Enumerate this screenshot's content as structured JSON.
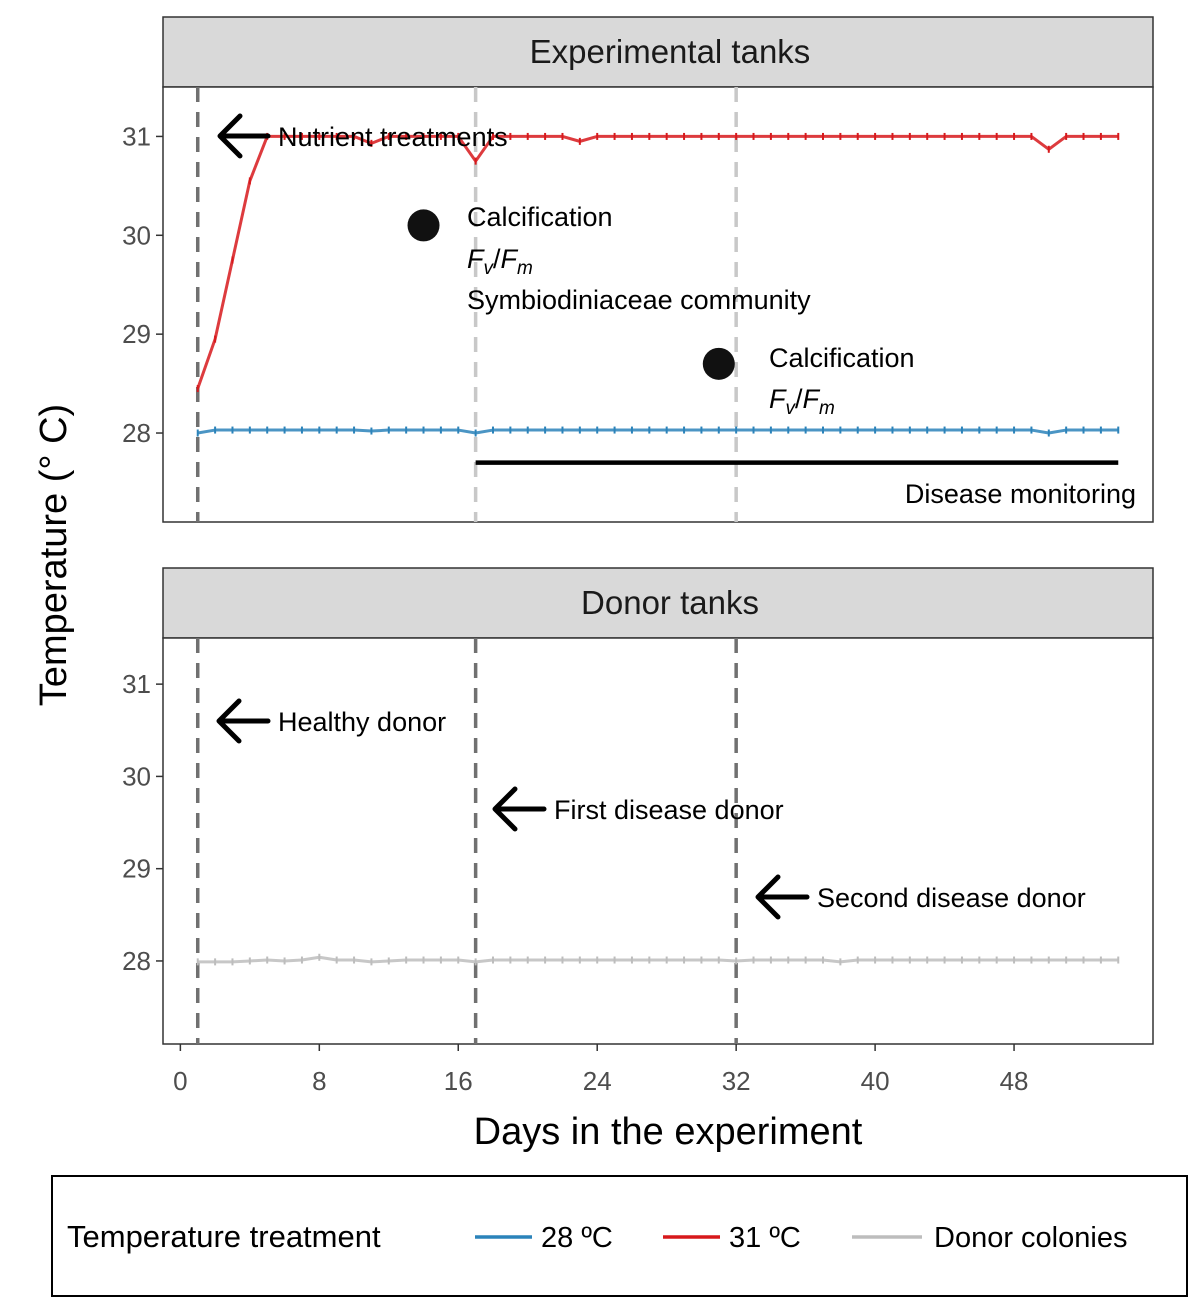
{
  "chart_data": {
    "type": "line",
    "xlabel": "Days in the experiment",
    "ylabel": "Temperature (° C)",
    "xlim": [
      -1,
      56
    ],
    "ylim": [
      27.1,
      31.5
    ],
    "x_ticks": [
      0,
      8,
      16,
      24,
      32,
      40,
      48
    ],
    "y_ticks": [
      28,
      29,
      30,
      31
    ],
    "grid": false,
    "legend": {
      "title": "Temperature treatment",
      "position": "bottom",
      "entries": [
        {
          "label": "28 ºC",
          "color": "#2b83ba"
        },
        {
          "label": "31 ºC",
          "color": "#d7191c"
        },
        {
          "label": "Donor colonies",
          "color": "#bdbdbd"
        }
      ]
    },
    "panels": [
      {
        "title": "Experimental tanks",
        "vlines": [
          {
            "x": 1,
            "color": "#707070"
          },
          {
            "x": 17,
            "color": "#c8c8c8"
          },
          {
            "x": 32,
            "color": "#c8c8c8"
          }
        ],
        "series": [
          {
            "name": "31 ºC",
            "color": "#d7191c",
            "x": [
              1,
              2,
              3,
              4,
              5,
              6,
              7,
              8,
              9,
              10,
              11,
              12,
              13,
              14,
              15,
              16,
              17,
              18,
              19,
              20,
              21,
              22,
              23,
              24,
              25,
              26,
              27,
              28,
              29,
              30,
              31,
              32,
              33,
              34,
              35,
              36,
              37,
              38,
              39,
              40,
              41,
              42,
              43,
              44,
              45,
              46,
              47,
              48,
              49,
              50,
              51,
              52,
              53,
              54
            ],
            "values": [
              28.45,
              28.95,
              29.75,
              30.55,
              31.0,
              31.0,
              31.0,
              31.0,
              31.0,
              31.0,
              30.93,
              31.0,
              31.0,
              31.0,
              31.0,
              31.0,
              30.75,
              31.0,
              31.0,
              31.0,
              31.0,
              31.0,
              30.95,
              31.0,
              31.0,
              31.0,
              31.0,
              31.0,
              31.0,
              31.0,
              31.0,
              31.0,
              31.0,
              31.0,
              31.0,
              31.0,
              31.0,
              31.0,
              31.0,
              31.0,
              31.0,
              31.0,
              31.0,
              31.0,
              31.0,
              31.0,
              31.0,
              31.0,
              31.0,
              30.87,
              31.0,
              31.0,
              31.0,
              31.0
            ]
          },
          {
            "name": "28 ºC",
            "color": "#2b83ba",
            "x": [
              1,
              2,
              3,
              4,
              5,
              6,
              7,
              8,
              9,
              10,
              11,
              12,
              13,
              14,
              15,
              16,
              17,
              18,
              19,
              20,
              21,
              22,
              23,
              24,
              25,
              26,
              27,
              28,
              29,
              30,
              31,
              32,
              33,
              34,
              35,
              36,
              37,
              38,
              39,
              40,
              41,
              42,
              43,
              44,
              45,
              46,
              47,
              48,
              49,
              50,
              51,
              52,
              53,
              54
            ],
            "values": [
              28.0,
              28.03,
              28.03,
              28.03,
              28.03,
              28.03,
              28.03,
              28.03,
              28.03,
              28.03,
              28.02,
              28.03,
              28.03,
              28.03,
              28.03,
              28.03,
              28.0,
              28.03,
              28.03,
              28.03,
              28.03,
              28.03,
              28.03,
              28.03,
              28.03,
              28.03,
              28.03,
              28.03,
              28.03,
              28.03,
              28.03,
              28.03,
              28.03,
              28.03,
              28.03,
              28.03,
              28.03,
              28.03,
              28.03,
              28.03,
              28.03,
              28.03,
              28.03,
              28.03,
              28.03,
              28.03,
              28.03,
              28.03,
              28.03,
              28.0,
              28.03,
              28.03,
              28.03,
              28.03
            ]
          }
        ],
        "annotations": {
          "nutrient": "Nutrient treatments",
          "sampling1": {
            "x": 14,
            "y": 30.1,
            "calcification": "Calcification",
            "fvfm_F": "F",
            "fvfm_v": "v",
            "fvfm_slash": "/",
            "fvfm_m": "m",
            "community": "Symbiodiniaceae community"
          },
          "sampling2": {
            "x": 31,
            "y": 28.7,
            "calcification": "Calcification",
            "fvfm_F": "F",
            "fvfm_v": "v",
            "fvfm_slash": "/",
            "fvfm_m": "m"
          },
          "monitoring": {
            "x_start": 17,
            "x_end": 54,
            "y": 27.7,
            "label": "Disease monitoring"
          }
        }
      },
      {
        "title": "Donor tanks",
        "vlines": [
          {
            "x": 1,
            "color": "#707070"
          },
          {
            "x": 17,
            "color": "#707070"
          },
          {
            "x": 32,
            "color": "#707070"
          }
        ],
        "series": [
          {
            "name": "Donor colonies",
            "color": "#bdbdbd",
            "x": [
              1,
              2,
              3,
              4,
              5,
              6,
              7,
              8,
              9,
              10,
              11,
              12,
              13,
              14,
              15,
              16,
              17,
              18,
              19,
              20,
              21,
              22,
              23,
              24,
              25,
              26,
              27,
              28,
              29,
              30,
              31,
              32,
              33,
              34,
              35,
              36,
              37,
              38,
              39,
              40,
              41,
              42,
              43,
              44,
              45,
              46,
              47,
              48,
              49,
              50,
              51,
              52,
              53,
              54
            ],
            "values": [
              27.99,
              27.99,
              27.99,
              28.0,
              28.01,
              28.0,
              28.01,
              28.04,
              28.01,
              28.01,
              27.99,
              28.0,
              28.01,
              28.01,
              28.01,
              28.01,
              27.99,
              28.01,
              28.01,
              28.01,
              28.01,
              28.01,
              28.01,
              28.01,
              28.01,
              28.01,
              28.01,
              28.01,
              28.01,
              28.01,
              28.01,
              28.0,
              28.01,
              28.01,
              28.01,
              28.01,
              28.01,
              27.99,
              28.01,
              28.01,
              28.01,
              28.01,
              28.01,
              28.01,
              28.01,
              28.01,
              28.01,
              28.01,
              28.01,
              28.01,
              28.01,
              28.01,
              28.01,
              28.01
            ]
          }
        ],
        "annotations": {
          "healthy": "Healthy donor",
          "first": "First disease donor",
          "second": "Second disease donor"
        }
      }
    ]
  }
}
